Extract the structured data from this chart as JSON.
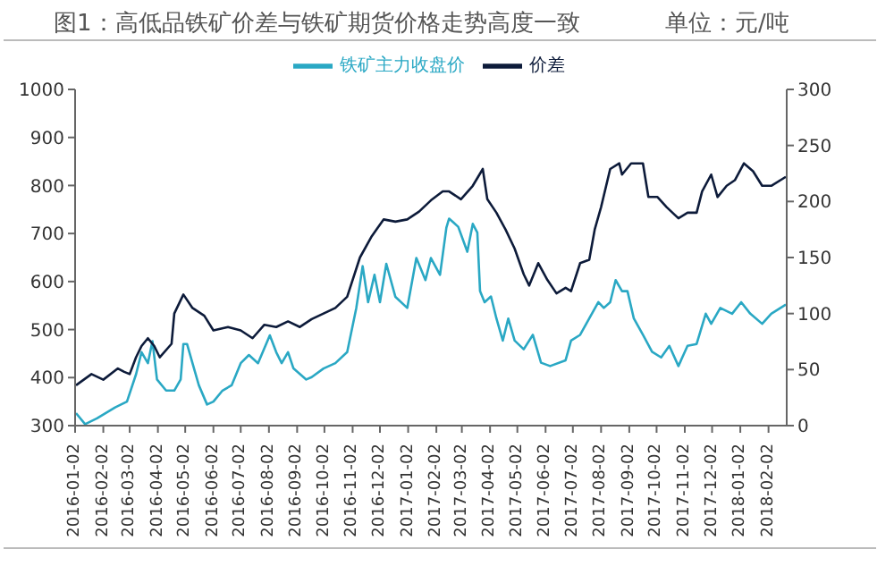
{
  "chart_data": {
    "type": "line",
    "title": "图1：高低品铁矿价差与铁矿期货价格走势高度一致",
    "subtitle": "单位：元/吨",
    "xlim": [
      "2016-01-02",
      "2018-02-22"
    ],
    "xticks": [
      {
        "value": "2016-01-02",
        "label": "2016-01-02"
      },
      {
        "value": "2016-02-02",
        "label": "2016-02-02"
      },
      {
        "value": "2016-03-02",
        "label": "2016-03-02"
      },
      {
        "value": "2016-04-02",
        "label": "2016-04-02"
      },
      {
        "value": "2016-05-02",
        "label": "2016-05-02"
      },
      {
        "value": "2016-06-02",
        "label": "2016-06-02"
      },
      {
        "value": "2016-07-02",
        "label": "2016-07-02"
      },
      {
        "value": "2016-08-02",
        "label": "2016-08-02"
      },
      {
        "value": "2016-09-02",
        "label": "2016-09-02"
      },
      {
        "value": "2016-10-02",
        "label": "2016-10-02"
      },
      {
        "value": "2016-11-02",
        "label": "2016-11-02"
      },
      {
        "value": "2016-12-02",
        "label": "2016-12-02"
      },
      {
        "value": "2017-01-02",
        "label": "2017-01-02"
      },
      {
        "value": "2017-02-02",
        "label": "2017-02-02"
      },
      {
        "value": "2017-03-02",
        "label": "2017-03-02"
      },
      {
        "value": "2017-04-02",
        "label": "2017-04-02"
      },
      {
        "value": "2017-05-02",
        "label": "2017-05-02"
      },
      {
        "value": "2017-06-02",
        "label": "2017-06-02"
      },
      {
        "value": "2017-07-02",
        "label": "2017-07-02"
      },
      {
        "value": "2017-08-02",
        "label": "2017-08-02"
      },
      {
        "value": "2017-09-02",
        "label": "2017-09-02"
      },
      {
        "value": "2017-10-02",
        "label": "2017-10-02"
      },
      {
        "value": "2017-11-02",
        "label": "2017-11-02"
      },
      {
        "value": "2017-12-02",
        "label": "2017-12-02"
      },
      {
        "value": "2018-01-02",
        "label": "2018-01-02"
      },
      {
        "value": "2018-02-02",
        "label": "2018-02-02"
      }
    ],
    "ylim": [
      300,
      1000
    ],
    "yticks": [
      300,
      400,
      500,
      600,
      700,
      800,
      900,
      1000
    ],
    "y2lim": [
      0,
      300
    ],
    "y2ticks": [
      0,
      50,
      100,
      150,
      200,
      250,
      300
    ],
    "legend": "top",
    "marker": "none",
    "line_style": "solid",
    "series": [
      {
        "name": "铁矿主力收盘价",
        "color": "#2aa8c4",
        "x": [
          "2016-01-03",
          "2016-01-13",
          "2016-01-26",
          "2016-02-15",
          "2016-02-28",
          "2016-03-09",
          "2016-03-15",
          "2016-03-22",
          "2016-03-27",
          "2016-04-01",
          "2016-04-11",
          "2016-04-20",
          "2016-04-27",
          "2016-04-30",
          "2016-05-04",
          "2016-05-10",
          "2016-05-17",
          "2016-05-26",
          "2016-06-02",
          "2016-06-12",
          "2016-06-22",
          "2016-07-02",
          "2016-07-11",
          "2016-07-21",
          "2016-08-03",
          "2016-08-10",
          "2016-08-16",
          "2016-08-23",
          "2016-08-29",
          "2016-09-12",
          "2016-09-18",
          "2016-10-01",
          "2016-10-14",
          "2016-10-27",
          "2016-11-06",
          "2016-11-13",
          "2016-11-19",
          "2016-11-26",
          "2016-12-02",
          "2016-12-09",
          "2016-12-19",
          "2017-01-01",
          "2017-01-11",
          "2017-01-21",
          "2017-01-27",
          "2017-02-06",
          "2017-02-13",
          "2017-02-16",
          "2017-02-26",
          "2017-03-08",
          "2017-03-14",
          "2017-03-19",
          "2017-03-22",
          "2017-03-27",
          "2017-04-03",
          "2017-04-09",
          "2017-04-16",
          "2017-04-22",
          "2017-04-29",
          "2017-05-09",
          "2017-05-19",
          "2017-05-28",
          "2017-06-07",
          "2017-06-24",
          "2017-06-30",
          "2017-07-10",
          "2017-07-20",
          "2017-07-30",
          "2017-08-05",
          "2017-08-12",
          "2017-08-18",
          "2017-08-25",
          "2017-08-31",
          "2017-09-07",
          "2017-09-17",
          "2017-09-27",
          "2017-10-07",
          "2017-10-16",
          "2017-10-26",
          "2017-11-05",
          "2017-11-15",
          "2017-11-25",
          "2017-12-01",
          "2017-12-11",
          "2017-12-24",
          "2018-01-03",
          "2018-01-13",
          "2018-01-26",
          "2018-02-05",
          "2018-02-21"
        ],
        "values": [
          326,
          303,
          315,
          338,
          350,
          407,
          453,
          430,
          476,
          396,
          373,
          373,
          396,
          470,
          470,
          430,
          384,
          344,
          350,
          373,
          384,
          430,
          447,
          430,
          488,
          453,
          430,
          453,
          419,
          396,
          401,
          419,
          430,
          453,
          545,
          632,
          557,
          614,
          557,
          637,
          568,
          545,
          649,
          603,
          649,
          614,
          712,
          731,
          714,
          662,
          720,
          702,
          580,
          557,
          569,
          523,
          477,
          523,
          477,
          459,
          489,
          431,
          424,
          436,
          477,
          489,
          523,
          557,
          545,
          557,
          603,
          580,
          580,
          523,
          489,
          454,
          442,
          466,
          424,
          466,
          470,
          533,
          512,
          545,
          533,
          557,
          533,
          512,
          533,
          552
        ]
      },
      {
        "name": "价差",
        "color": "#0d1b3a",
        "axis": "y2",
        "x": [
          "2016-01-03",
          "2016-01-20",
          "2016-02-02",
          "2016-02-18",
          "2016-02-25",
          "2016-03-02",
          "2016-03-09",
          "2016-03-15",
          "2016-03-22",
          "2016-03-29",
          "2016-04-04",
          "2016-04-17",
          "2016-04-20",
          "2016-04-30",
          "2016-05-10",
          "2016-05-23",
          "2016-06-02",
          "2016-06-18",
          "2016-07-02",
          "2016-07-15",
          "2016-07-28",
          "2016-08-10",
          "2016-08-23",
          "2016-09-05",
          "2016-09-18",
          "2016-10-01",
          "2016-10-14",
          "2016-10-27",
          "2016-11-10",
          "2016-11-23",
          "2016-12-06",
          "2016-12-19",
          "2017-01-01",
          "2017-01-14",
          "2017-01-27",
          "2017-02-09",
          "2017-02-16",
          "2017-03-01",
          "2017-03-14",
          "2017-03-25",
          "2017-03-30",
          "2017-04-09",
          "2017-04-19",
          "2017-04-29",
          "2017-05-09",
          "2017-05-15",
          "2017-05-25",
          "2017-06-04",
          "2017-06-14",
          "2017-06-24",
          "2017-06-30",
          "2017-07-10",
          "2017-07-20",
          "2017-07-26",
          "2017-08-02",
          "2017-08-12",
          "2017-08-22",
          "2017-08-25",
          "2017-09-04",
          "2017-09-17",
          "2017-09-23",
          "2017-10-03",
          "2017-10-13",
          "2017-10-26",
          "2017-11-05",
          "2017-11-15",
          "2017-11-21",
          "2017-12-01",
          "2017-12-08",
          "2017-12-18",
          "2017-12-27",
          "2018-01-06",
          "2018-01-16",
          "2018-01-26",
          "2018-02-05",
          "2018-02-21"
        ],
        "values": [
          36,
          46,
          41,
          51,
          48,
          46,
          61,
          71,
          78,
          71,
          61,
          73,
          100,
          117,
          105,
          98,
          85,
          88,
          85,
          78,
          90,
          88,
          93,
          88,
          95,
          100,
          105,
          115,
          150,
          169,
          184,
          182,
          184,
          191,
          201,
          209,
          209,
          202,
          214,
          229,
          202,
          190,
          175,
          158,
          135,
          125,
          145,
          130,
          118,
          123,
          120,
          145,
          148,
          175,
          195,
          229,
          234,
          224,
          234,
          234,
          204,
          204,
          195,
          185,
          190,
          190,
          209,
          224,
          204,
          214,
          219,
          234,
          227,
          214,
          214,
          222
        ]
      }
    ]
  }
}
